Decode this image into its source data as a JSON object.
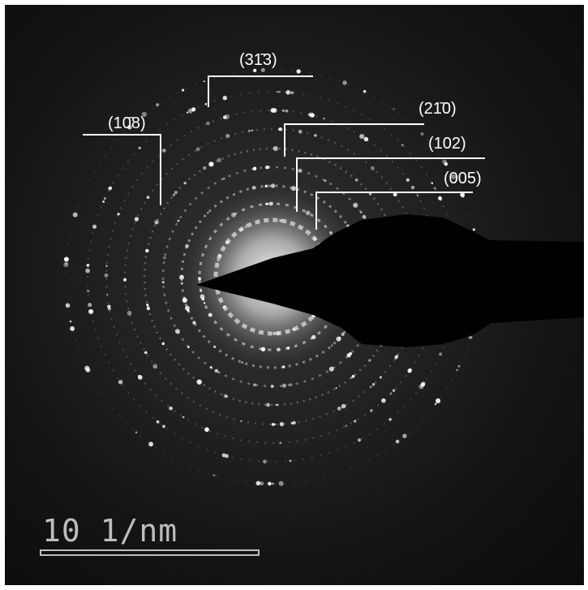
{
  "pattern": {
    "description_type": "electron-diffraction-pattern",
    "colors": {
      "background": "#141414",
      "rings": "#9a9a9a",
      "beam_stop": "#000000",
      "labels": "#ffffff"
    }
  },
  "ring_labels": [
    {
      "id": "lbl-108",
      "text": "(10̄8)"
    },
    {
      "id": "lbl-313",
      "text": "(31̄3)"
    },
    {
      "id": "lbl-210",
      "text": "(21̄0)"
    },
    {
      "id": "lbl-102",
      "text": "(102)"
    },
    {
      "id": "lbl-005",
      "text": "(005)"
    }
  ],
  "scale_bar": {
    "text": "10 1/nm"
  }
}
